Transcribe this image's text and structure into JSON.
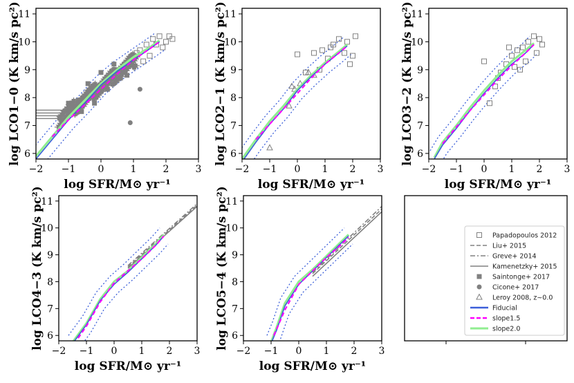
{
  "chart_data": [
    {
      "type": "scatter",
      "panel": "CO1-0",
      "xlabel": "log SFR/M⊙ yr⁻¹",
      "ylabel": "log LCO1−0 (K km/s pc²)",
      "xlim": [
        -2,
        3
      ],
      "ylim": [
        5.8,
        11.2
      ],
      "xticks": [
        "−2",
        "−1",
        "0",
        "1",
        "2",
        "3"
      ],
      "yticks": [
        "6",
        "7",
        "8",
        "9",
        "10",
        "11"
      ],
      "series": [
        {
          "name": "Fiducial",
          "x": [
            -2.0,
            -1.5,
            -1.0,
            -0.5,
            0.0,
            0.5,
            1.0,
            1.5,
            1.8
          ],
          "y": [
            5.8,
            6.5,
            7.2,
            7.8,
            8.45,
            8.95,
            9.35,
            9.75,
            10.0
          ]
        },
        {
          "name": "slope1.5",
          "x": [
            -1.5,
            -1.0,
            -0.5,
            0.0,
            0.5,
            1.0,
            1.5,
            1.8
          ],
          "y": [
            6.6,
            7.2,
            7.75,
            8.3,
            8.85,
            9.35,
            9.75,
            10.0
          ]
        },
        {
          "name": "slope2.0",
          "x": [
            -2.0,
            -1.5,
            -1.0,
            -0.5,
            0.0,
            0.5,
            1.0,
            1.5,
            1.8
          ],
          "y": [
            5.9,
            6.6,
            7.3,
            7.9,
            8.5,
            9.0,
            9.45,
            9.8,
            10.05
          ]
        },
        {
          "name": "Papadopoulos 2012",
          "x": [
            1.0,
            1.2,
            1.4,
            1.6,
            1.8,
            2.0,
            2.1,
            1.9,
            1.5,
            1.3,
            1.1,
            1.7,
            2.2,
            0.9
          ],
          "y": [
            9.5,
            9.7,
            9.9,
            10.1,
            10.2,
            10.0,
            10.2,
            9.8,
            9.5,
            9.3,
            9.6,
            9.9,
            10.1,
            9.2
          ]
        },
        {
          "name": "Saintonge+ 2017",
          "x": [
            -1.2,
            -0.9,
            -0.7,
            -0.5,
            -0.3,
            -0.1,
            0.1,
            0.3,
            0.5,
            0.7,
            0.9,
            -0.6,
            -0.2,
            0.2,
            0.6,
            -1.0,
            0.0,
            0.4,
            -0.4,
            0.8
          ],
          "y": [
            7.2,
            7.6,
            7.9,
            8.0,
            8.3,
            8.2,
            8.6,
            8.8,
            9.0,
            9.1,
            9.2,
            7.5,
            7.8,
            8.3,
            8.7,
            7.8,
            8.9,
            9.2,
            8.5,
            8.8
          ]
        },
        {
          "name": "Cicone+ 2017",
          "x": [
            0.9,
            1.2
          ],
          "y": [
            7.1,
            8.3
          ]
        }
      ]
    },
    {
      "type": "scatter",
      "panel": "CO2-1",
      "xlabel": "log SFR/M⊙ yr⁻¹",
      "ylabel": "log LCO2−1 (K km/s pc²)",
      "xlim": [
        -2,
        3
      ],
      "ylim": [
        5.8,
        11.2
      ],
      "xticks": [
        "−2",
        "−1",
        "0",
        "1",
        "2",
        "3"
      ],
      "yticks": [
        "6",
        "7",
        "8",
        "9",
        "10",
        "11"
      ],
      "series": [
        {
          "name": "Fiducial",
          "x": [
            -2.0,
            -1.5,
            -1.0,
            -0.5,
            0.0,
            0.5,
            1.0,
            1.5,
            1.8
          ],
          "y": [
            5.7,
            6.4,
            7.05,
            7.6,
            8.25,
            8.75,
            9.2,
            9.6,
            9.85
          ]
        },
        {
          "name": "slope1.5",
          "x": [
            -1.5,
            -1.0,
            -0.5,
            0.0,
            0.5,
            1.0,
            1.5,
            1.8
          ],
          "y": [
            6.5,
            7.05,
            7.6,
            8.15,
            8.7,
            9.2,
            9.6,
            9.85
          ]
        },
        {
          "name": "slope2.0",
          "x": [
            -2.0,
            -1.5,
            -1.0,
            -0.5,
            0.0,
            0.5,
            1.0,
            1.5,
            1.8
          ],
          "y": [
            5.8,
            6.5,
            7.15,
            7.7,
            8.3,
            8.8,
            9.25,
            9.65,
            9.9
          ]
        },
        {
          "name": "Papadopoulos 2012",
          "x": [
            0.0,
            0.3,
            0.6,
            0.9,
            1.1,
            1.3,
            1.5,
            1.7,
            1.9,
            2.0,
            2.1,
            0.8,
            1.2,
            1.8
          ],
          "y": [
            9.55,
            8.9,
            9.6,
            9.7,
            9.4,
            9.9,
            10.1,
            9.6,
            9.2,
            9.5,
            10.2,
            9.0,
            9.8,
            10.0
          ]
        },
        {
          "name": "Leroy 2008, z~0.0",
          "x": [
            -1.0,
            -0.3,
            -0.1,
            0.1,
            0.4,
            0.6,
            -0.2
          ],
          "y": [
            6.2,
            7.7,
            8.3,
            8.5,
            8.9,
            8.8,
            8.4
          ]
        }
      ]
    },
    {
      "type": "scatter",
      "panel": "CO3-2",
      "xlabel": "log SFR/M⊙ yr⁻¹",
      "ylabel": "log LCO3−2 (K km/s pc²)",
      "xlim": [
        -2,
        3
      ],
      "ylim": [
        5.8,
        11.2
      ],
      "xticks": [
        "−2",
        "−1",
        "0",
        "1",
        "2",
        "3"
      ],
      "yticks": [
        "6",
        "7",
        "8",
        "9",
        "10",
        "11"
      ],
      "series": [
        {
          "name": "Fiducial",
          "x": [
            -1.8,
            -1.5,
            -1.0,
            -0.5,
            0.0,
            0.5,
            1.0,
            1.5,
            1.8
          ],
          "y": [
            5.8,
            6.3,
            6.9,
            7.55,
            8.15,
            8.7,
            9.2,
            9.6,
            9.9
          ]
        },
        {
          "name": "slope1.5",
          "x": [
            -1.5,
            -1.0,
            -0.5,
            0.0,
            0.5,
            1.0,
            1.5,
            1.8
          ],
          "y": [
            6.35,
            6.95,
            7.55,
            8.1,
            8.65,
            9.15,
            9.6,
            9.9
          ]
        },
        {
          "name": "slope2.0",
          "x": [
            -1.8,
            -1.5,
            -1.0,
            -0.5,
            0.0,
            0.5,
            1.0,
            1.5,
            1.8
          ],
          "y": [
            5.85,
            6.4,
            7.0,
            7.65,
            8.25,
            8.8,
            9.3,
            9.7,
            9.95
          ]
        },
        {
          "name": "Papadopoulos 2012",
          "x": [
            0.0,
            0.2,
            0.4,
            0.6,
            0.8,
            1.0,
            1.2,
            1.4,
            1.6,
            1.8,
            2.0,
            2.1,
            0.5,
            1.1,
            1.5,
            1.9,
            0.9,
            1.3
          ],
          "y": [
            9.3,
            7.8,
            8.4,
            8.9,
            9.2,
            9.5,
            9.7,
            9.8,
            10.0,
            10.2,
            10.1,
            9.9,
            8.7,
            9.1,
            9.3,
            9.6,
            9.8,
            9.0
          ]
        }
      ]
    },
    {
      "type": "line",
      "panel": "CO4-3",
      "xlabel": "log SFR/M⊙ yr⁻¹",
      "ylabel": "log LCO4−3 (K km/s pc²)",
      "xlim": [
        -2,
        3
      ],
      "ylim": [
        5.8,
        11.2
      ],
      "xticks": [
        "−2",
        "−1",
        "0",
        "1",
        "2",
        "3"
      ],
      "yticks": [
        "6",
        "7",
        "8",
        "9",
        "10",
        "11"
      ],
      "series": [
        {
          "name": "Fiducial",
          "x": [
            -1.5,
            -1.0,
            -0.5,
            0.0,
            0.5,
            1.0,
            1.5,
            1.8
          ],
          "y": [
            5.7,
            6.4,
            7.3,
            7.9,
            8.35,
            8.85,
            9.35,
            9.7
          ]
        },
        {
          "name": "slope1.5",
          "x": [
            -1.3,
            -1.0,
            -0.5,
            0.0,
            0.5,
            1.0,
            1.5,
            1.8
          ],
          "y": [
            5.9,
            6.35,
            7.25,
            7.95,
            8.4,
            8.85,
            9.35,
            9.7
          ]
        },
        {
          "name": "slope2.0",
          "x": [
            -1.5,
            -1.0,
            -0.5,
            0.0,
            0.5,
            1.0,
            1.5,
            1.8
          ],
          "y": [
            5.75,
            6.45,
            7.35,
            8.0,
            8.4,
            8.9,
            9.4,
            9.75
          ]
        },
        {
          "name": "Liu+ 2015",
          "x": [
            0.5,
            3.0
          ],
          "y": [
            8.55,
            10.85
          ]
        },
        {
          "name": "Greve+ 2014",
          "x": [
            0.5,
            3.0
          ],
          "y": [
            8.6,
            10.9
          ]
        },
        {
          "name": "Kamenetzky+ 2015",
          "x": [
            0.5,
            3.0
          ],
          "y": [
            8.5,
            10.8
          ]
        }
      ]
    },
    {
      "type": "line",
      "panel": "CO5-4",
      "xlabel": "log SFR/M⊙ yr⁻¹",
      "ylabel": "log LCO5−4 (K km/s pc²)",
      "xlim": [
        -2,
        3
      ],
      "ylim": [
        5.8,
        11.2
      ],
      "xticks": [
        "−2",
        "−1",
        "0",
        "1",
        "2",
        "3"
      ],
      "yticks": [
        "6",
        "7",
        "8",
        "9",
        "10",
        "11"
      ],
      "series": [
        {
          "name": "Fiducial",
          "x": [
            -1.0,
            -0.8,
            -0.5,
            0.0,
            0.5,
            1.0,
            1.5,
            1.8
          ],
          "y": [
            5.7,
            6.2,
            7.1,
            7.9,
            8.4,
            8.9,
            9.4,
            9.7
          ]
        },
        {
          "name": "slope1.5",
          "x": [
            -0.9,
            -0.5,
            0.0,
            0.5,
            1.0,
            1.5,
            1.8
          ],
          "y": [
            6.0,
            6.95,
            7.9,
            8.4,
            8.9,
            9.35,
            9.65
          ]
        },
        {
          "name": "slope2.0",
          "x": [
            -1.0,
            -0.8,
            -0.5,
            0.0,
            0.5,
            1.0,
            1.5,
            1.8
          ],
          "y": [
            5.75,
            6.3,
            7.2,
            8.0,
            8.45,
            8.95,
            9.45,
            9.75
          ]
        },
        {
          "name": "Liu+ 2015",
          "x": [
            0.5,
            3.0
          ],
          "y": [
            8.3,
            10.7
          ]
        },
        {
          "name": "Greve+ 2014",
          "x": [
            0.5,
            3.0
          ],
          "y": [
            8.35,
            10.8
          ]
        },
        {
          "name": "Kamenetzky+ 2015",
          "x": [
            0.5,
            3.0
          ],
          "y": [
            8.2,
            10.6
          ]
        }
      ]
    }
  ],
  "legend": {
    "items": [
      {
        "label": "Papadopoulos 2012",
        "style": "open-square"
      },
      {
        "label": "Liu+ 2015",
        "style": "dashed"
      },
      {
        "label": "Greve+ 2014",
        "style": "dashdot"
      },
      {
        "label": "Kamenetzky+ 2015",
        "style": "solid-gray"
      },
      {
        "label": "Saintonge+ 2017",
        "style": "filled-square"
      },
      {
        "label": "Cicone+ 2017",
        "style": "filled-circle"
      },
      {
        "label": "Leroy 2008, z∼0.0",
        "style": "open-triangle"
      },
      {
        "label": "Fiducial",
        "style": "line-blue"
      },
      {
        "label": "slope1.5",
        "style": "line-magenta-dashed"
      },
      {
        "label": "slope2.0",
        "style": "line-green"
      }
    ]
  },
  "colors": {
    "fiducial": "#3b5fd9",
    "slope15": "#ff00ff",
    "slope20": "#90ee90",
    "data": "#808080",
    "axis": "#000000"
  }
}
